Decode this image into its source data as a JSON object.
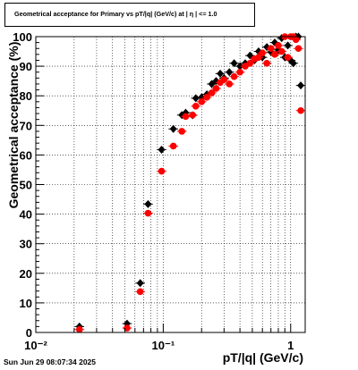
{
  "chart_data": {
    "type": "scatter",
    "title": "Geometrical acceptance for Primary vs pT/|q| (GeV/c) at |  η  | <= 1.0",
    "xlabel": "pT/|q| (GeV/c)",
    "ylabel": "Geometrical acceptance (%)",
    "xscale": "log",
    "xlim": [
      0.01,
      1.3
    ],
    "ylim": [
      0,
      100
    ],
    "grid": true,
    "x_tick_labels": [
      "10⁻²",
      "10⁻¹",
      "1"
    ],
    "y_tick_labels": [
      "0",
      "10",
      "20",
      "30",
      "40",
      "50",
      "60",
      "70",
      "80",
      "90",
      "100"
    ],
    "series": [
      {
        "color": "#000000",
        "marker": "diamond",
        "x": [
          0.022,
          0.052,
          0.066,
          0.076,
          0.097,
          0.12,
          0.14,
          0.15,
          0.17,
          0.18,
          0.2,
          0.22,
          0.24,
          0.26,
          0.28,
          0.3,
          0.33,
          0.36,
          0.4,
          0.44,
          0.48,
          0.52,
          0.56,
          0.6,
          0.65,
          0.7,
          0.75,
          0.8,
          0.85,
          0.9,
          0.95,
          1.0,
          1.05,
          1.1,
          1.15,
          1.2
        ],
        "y": [
          2,
          3,
          16.7,
          43.4,
          61.8,
          68.8,
          73.5,
          74.3,
          73.4,
          79.2,
          79.5,
          80.5,
          84,
          85,
          87.5,
          86,
          88,
          91,
          90,
          91,
          93.6,
          92,
          95,
          93,
          96.5,
          94.8,
          98,
          95.5,
          99.5,
          93,
          97,
          92,
          91,
          100,
          100,
          83.5
        ]
      },
      {
        "color": "#ff0000",
        "marker": "circle",
        "x": [
          0.022,
          0.052,
          0.066,
          0.076,
          0.097,
          0.12,
          0.14,
          0.15,
          0.17,
          0.18,
          0.2,
          0.22,
          0.24,
          0.26,
          0.28,
          0.3,
          0.33,
          0.36,
          0.4,
          0.44,
          0.48,
          0.52,
          0.56,
          0.6,
          0.65,
          0.7,
          0.75,
          0.8,
          0.85,
          0.9,
          0.95,
          1.0,
          1.05,
          1.1,
          1.15,
          1.2
        ],
        "y": [
          1,
          1.5,
          13.8,
          40.3,
          54.5,
          63,
          68,
          73,
          73.5,
          76.5,
          78,
          79.5,
          81,
          82.5,
          84.5,
          85.5,
          84,
          86.5,
          88,
          90,
          91,
          92.5,
          93,
          94.5,
          91,
          96,
          94,
          97,
          95,
          100,
          93,
          100,
          100,
          99,
          96,
          75
        ]
      }
    ]
  },
  "footer": {
    "timestamp": "Sun Jun 29 08:07:34 2025"
  }
}
